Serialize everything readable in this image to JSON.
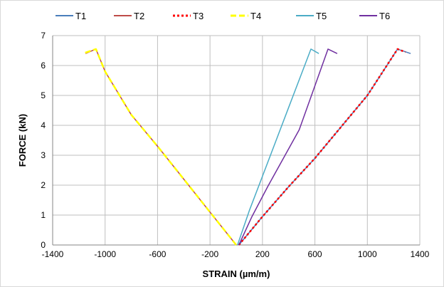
{
  "chart_data": {
    "type": "line",
    "xlabel": "STRAIN (µm/m)",
    "ylabel": "FORCE  (kN)",
    "xlim": [
      -1400,
      1400
    ],
    "ylim": [
      0,
      7
    ],
    "xticks": [
      -1400,
      -1000,
      -600,
      -200,
      200,
      600,
      1000,
      1400
    ],
    "yticks": [
      0,
      1,
      2,
      3,
      4,
      5,
      6,
      7
    ],
    "xtick_labels": [
      "-1400",
      "-1000",
      "-600",
      "-200",
      "200",
      "600",
      "1000",
      "1400"
    ],
    "ytick_labels": [
      "0",
      "1",
      "2",
      "3",
      "4",
      "5",
      "6",
      "7"
    ],
    "grid": true,
    "legend_position": "top",
    "series": [
      {
        "name": "T1",
        "color": "#4a7ebb",
        "dash": "solid",
        "width": 1.5,
        "x": [
          20,
          200,
          400,
          600,
          800,
          1000,
          1230,
          1330
        ],
        "y": [
          0,
          0.95,
          1.95,
          2.9,
          3.95,
          5.0,
          6.55,
          6.4
        ]
      },
      {
        "name": "T2",
        "color": "#be4b48",
        "dash": "solid",
        "width": 1.5,
        "x": [
          0,
          -200,
          -400,
          -600,
          -800,
          -1000,
          -1070,
          -1150
        ],
        "y": [
          0,
          1.1,
          2.2,
          3.3,
          4.35,
          5.8,
          6.55,
          6.4
        ]
      },
      {
        "name": "T3",
        "color": "#ff0000",
        "dash": "dotted",
        "width": 2.5,
        "x": [
          20,
          200,
          400,
          600,
          800,
          1000,
          1230,
          1290
        ],
        "y": [
          0,
          0.95,
          1.95,
          2.9,
          3.95,
          5.0,
          6.55,
          6.45
        ]
      },
      {
        "name": "T4",
        "color": "#ffff00",
        "dash": "dashed",
        "width": 2.5,
        "x": [
          0,
          -200,
          -400,
          -600,
          -800,
          -1000,
          -1070,
          -1170
        ],
        "y": [
          0,
          1.1,
          2.2,
          3.3,
          4.35,
          5.8,
          6.55,
          6.4
        ]
      },
      {
        "name": "T5",
        "color": "#4bacc6",
        "dash": "solid",
        "width": 1.5,
        "x": [
          10,
          100,
          200,
          300,
          400,
          570,
          630
        ],
        "y": [
          0,
          1.15,
          2.3,
          3.45,
          4.6,
          6.55,
          6.4
        ]
      },
      {
        "name": "T6",
        "color": "#7030a0",
        "dash": "solid",
        "width": 1.5,
        "x": [
          20,
          120,
          240,
          360,
          480,
          700,
          770
        ],
        "y": [
          0,
          0.95,
          1.95,
          2.9,
          3.85,
          6.55,
          6.4
        ]
      }
    ]
  }
}
